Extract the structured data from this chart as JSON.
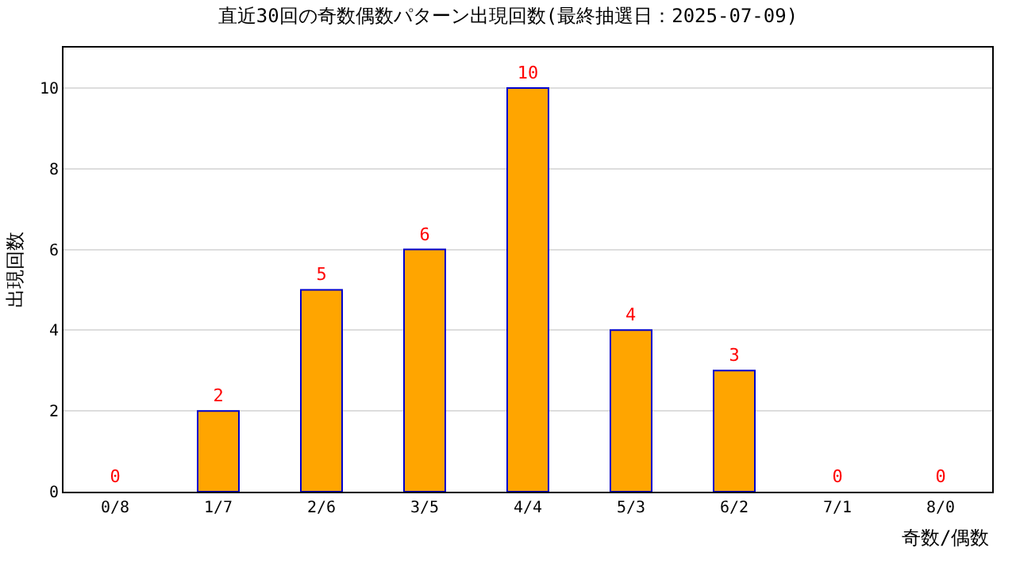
{
  "chart_data": {
    "type": "bar",
    "title": "直近30回の奇数偶数パターン出現回数(最終抽選日：2025-07-09)",
    "xlabel": "奇数/偶数",
    "ylabel": "出現回数",
    "categories": [
      "0/8",
      "1/7",
      "2/6",
      "3/5",
      "4/4",
      "5/3",
      "6/2",
      "7/1",
      "8/0"
    ],
    "values": [
      0,
      2,
      5,
      6,
      10,
      4,
      3,
      0,
      0
    ],
    "color": "#ffa500",
    "ylim": [
      0,
      11
    ],
    "yticks": [
      0,
      2,
      4,
      6,
      8,
      10
    ],
    "grid": "y",
    "data_labels": true
  }
}
